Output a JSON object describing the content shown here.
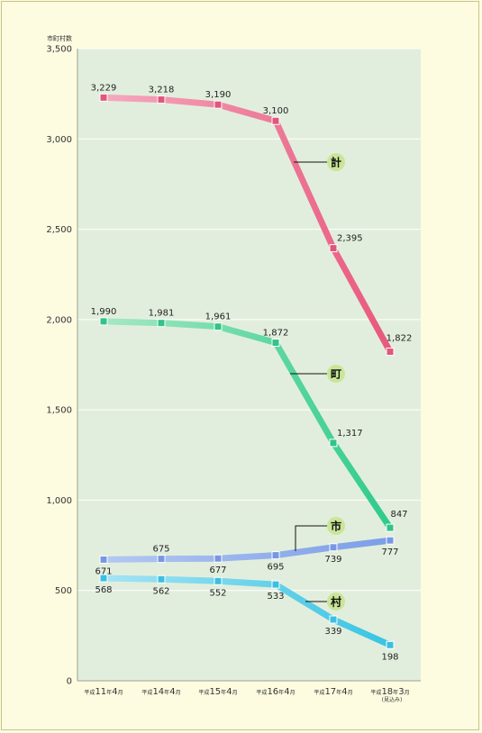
{
  "chart_data": {
    "type": "line",
    "ylabel": "市町村数",
    "ylim": [
      0,
      3500
    ],
    "yticks": [
      "0",
      "500",
      "1,000",
      "1,500",
      "2,000",
      "2,500",
      "3,000",
      "3,500"
    ],
    "categories": [
      {
        "era": "平成",
        "num": "11",
        "mid": "年",
        "month": "4",
        "end": "月",
        "note": ""
      },
      {
        "era": "平成",
        "num": "14",
        "mid": "年",
        "month": "4",
        "end": "月",
        "note": ""
      },
      {
        "era": "平成",
        "num": "15",
        "mid": "年",
        "month": "4",
        "end": "月",
        "note": ""
      },
      {
        "era": "平成",
        "num": "16",
        "mid": "年",
        "month": "4",
        "end": "月",
        "note": ""
      },
      {
        "era": "平成",
        "num": "17",
        "mid": "年",
        "month": "4",
        "end": "月",
        "note": ""
      },
      {
        "era": "平成",
        "num": "18",
        "mid": "年",
        "month": "3",
        "end": "月",
        "note": "(見込み)"
      }
    ],
    "grid": true,
    "series": [
      {
        "name": "計",
        "color_start": "#f5a9bf",
        "color_end": "#e8587e",
        "marker": "#e2557c",
        "values": [
          3229,
          3218,
          3190,
          3100,
          2395,
          1822
        ],
        "labels": [
          "3,229",
          "3,218",
          "3,190",
          "3,100",
          "2,395",
          "1,822"
        ],
        "label_pos": [
          "above",
          "above",
          "above",
          "above",
          "right",
          "above"
        ]
      },
      {
        "name": "町",
        "color_start": "#a6e8c4",
        "color_end": "#2ecb8c",
        "marker": "#32c28a",
        "values": [
          1990,
          1981,
          1961,
          1872,
          1317,
          847
        ],
        "labels": [
          "1,990",
          "1,981",
          "1,961",
          "1,872",
          "1,317",
          "847"
        ],
        "label_pos": [
          "above",
          "above",
          "above",
          "above",
          "right",
          "above"
        ]
      },
      {
        "name": "市",
        "color_start": "#b3c8f2",
        "color_end": "#7c9ee8",
        "marker": "#7897e3",
        "values": [
          671,
          675,
          677,
          695,
          739,
          777
        ],
        "labels": [
          "671",
          "675",
          "677",
          "695",
          "739",
          "777"
        ],
        "label_pos": [
          "below",
          "above",
          "below",
          "below",
          "below",
          "below"
        ]
      },
      {
        "name": "村",
        "color_start": "#a5e4f4",
        "color_end": "#38c4e3",
        "marker": "#3cbfe0",
        "values": [
          568,
          562,
          552,
          533,
          339,
          198
        ],
        "labels": [
          "568",
          "562",
          "552",
          "533",
          "339",
          "198"
        ],
        "label_pos": [
          "below",
          "below",
          "below",
          "below",
          "below",
          "below"
        ]
      }
    ]
  },
  "colors": {
    "plot_bg": "#e2eedd",
    "page_bg": "#fdfbe0",
    "badge": "#c9e698"
  }
}
